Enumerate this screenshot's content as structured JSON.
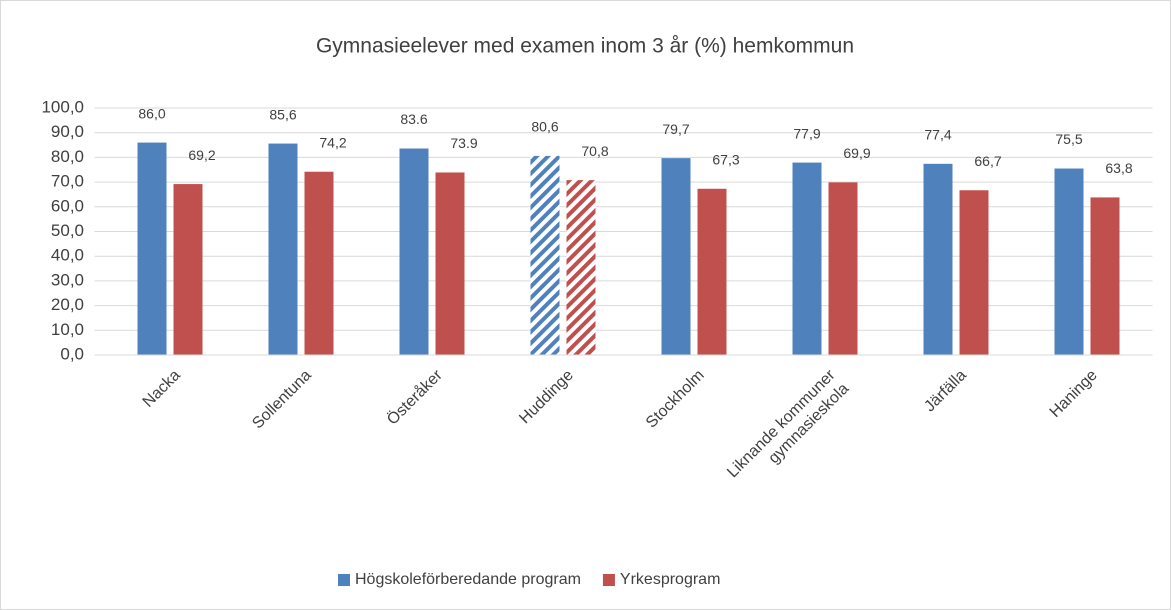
{
  "chart_data": {
    "type": "bar",
    "title": "Gymnasieelever med examen inom 3 år (%) hemkommun",
    "categories": [
      "Nacka",
      "Sollentuna",
      "Österåker",
      "Huddinge",
      "Stockholm",
      "Liknande kommuner\ngymnasieskola",
      "Järfälla",
      "Haninge"
    ],
    "series": [
      {
        "name": "Högskoleförberedande program",
        "color": "#4f81bd",
        "values": [
          86.0,
          85.6,
          83.6,
          80.6,
          79.7,
          77.9,
          77.4,
          75.5
        ],
        "value_labels": [
          "86,0",
          "85,6",
          "83.6",
          "80,6",
          "79,7",
          "77,9",
          "77,4",
          "75,5"
        ]
      },
      {
        "name": "Yrkesprogram",
        "color": "#c0504d",
        "values": [
          69.2,
          74.2,
          73.9,
          70.8,
          67.3,
          69.9,
          66.7,
          63.8
        ],
        "value_labels": [
          "69,2",
          "74,2",
          "73.9",
          "70,8",
          "67,3",
          "69,9",
          "66,7",
          "63,8"
        ]
      }
    ],
    "hatched_categories": [
      "Huddinge"
    ],
    "ylim": [
      0,
      100
    ],
    "yticks": [
      {
        "value": 0,
        "label": "0,0"
      },
      {
        "value": 10,
        "label": "10,0"
      },
      {
        "value": 20,
        "label": "20,0"
      },
      {
        "value": 30,
        "label": "30,0"
      },
      {
        "value": 40,
        "label": "40,0"
      },
      {
        "value": 50,
        "label": "50,0"
      },
      {
        "value": 60,
        "label": "60,0"
      },
      {
        "value": 70,
        "label": "70,0"
      },
      {
        "value": 80,
        "label": "80,0"
      },
      {
        "value": 90,
        "label": "90,0"
      },
      {
        "value": 100,
        "label": "100,0"
      }
    ],
    "grid": true,
    "legend": "bottom"
  }
}
